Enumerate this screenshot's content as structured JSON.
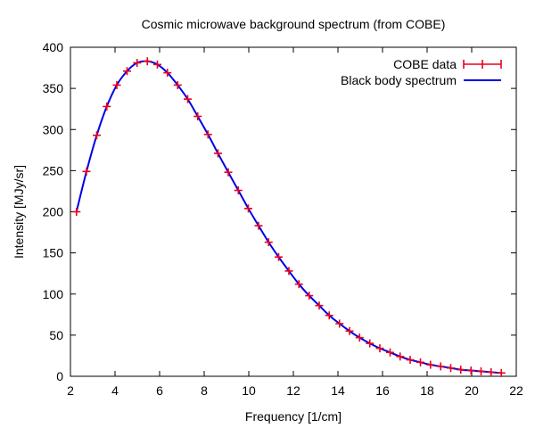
{
  "chart_data": {
    "type": "line",
    "title": "Cosmic microwave background spectrum (from COBE)",
    "xlabel": "Frequency [1/cm]",
    "ylabel": "Intensity [MJy/sr]",
    "xlim": [
      2,
      22
    ],
    "ylim": [
      0,
      400
    ],
    "x_ticks": [
      2,
      4,
      6,
      8,
      10,
      12,
      14,
      16,
      18,
      20,
      22
    ],
    "y_ticks": [
      0,
      50,
      100,
      150,
      200,
      250,
      300,
      350,
      400
    ],
    "grid": false,
    "legend_position": "top-right",
    "series": [
      {
        "name": "COBE data",
        "style": "points-with-errorbars",
        "color": "#e8001c",
        "x": [
          2.27,
          2.72,
          3.18,
          3.63,
          4.08,
          4.54,
          4.99,
          5.45,
          5.9,
          6.35,
          6.81,
          7.26,
          7.71,
          8.17,
          8.62,
          9.08,
          9.53,
          9.98,
          10.44,
          10.89,
          11.34,
          11.8,
          12.25,
          12.71,
          13.16,
          13.61,
          14.07,
          14.52,
          14.97,
          15.43,
          15.88,
          16.34,
          16.79,
          17.24,
          17.7,
          18.15,
          18.61,
          19.06,
          19.51,
          19.97,
          20.42,
          20.87,
          21.33
        ],
        "y": [
          200,
          249,
          293,
          328,
          354,
          371,
          381,
          383,
          379,
          369,
          354,
          337,
          316,
          294,
          271,
          248,
          226,
          204,
          183,
          163,
          145,
          128,
          112,
          98,
          86,
          74,
          64,
          55,
          47,
          40,
          34,
          29,
          24,
          20,
          17,
          14,
          12,
          10,
          8,
          7,
          6,
          5,
          4
        ]
      },
      {
        "name": "Black body spectrum",
        "style": "line",
        "color": "#0000e6",
        "x": [
          2.27,
          2.72,
          3.18,
          3.63,
          4.08,
          4.54,
          4.99,
          5.45,
          5.9,
          6.35,
          6.81,
          7.26,
          7.71,
          8.17,
          8.62,
          9.08,
          9.53,
          9.98,
          10.44,
          10.89,
          11.34,
          11.8,
          12.25,
          12.71,
          13.16,
          13.61,
          14.07,
          14.52,
          14.97,
          15.43,
          15.88,
          16.34,
          16.79,
          17.24,
          17.7,
          18.15,
          18.61,
          19.06,
          19.51,
          19.97,
          20.42,
          20.87,
          21.33
        ],
        "y": [
          200,
          249,
          293,
          328,
          354,
          371,
          381,
          383,
          379,
          369,
          354,
          337,
          316,
          294,
          271,
          248,
          226,
          204,
          183,
          163,
          145,
          128,
          112,
          98,
          86,
          74,
          64,
          55,
          47,
          40,
          34,
          29,
          24,
          20,
          17,
          14,
          12,
          10,
          8,
          7,
          6,
          5,
          4
        ]
      }
    ]
  }
}
